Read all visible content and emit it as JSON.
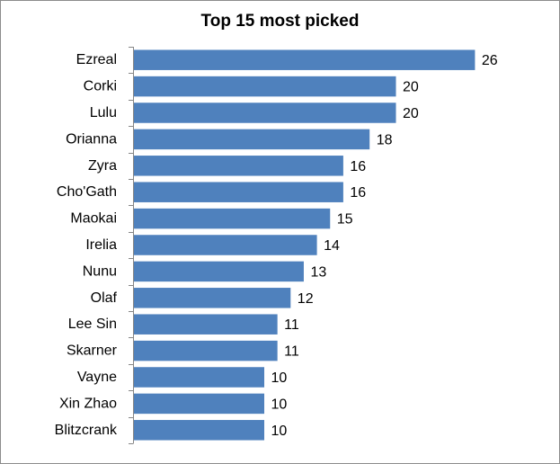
{
  "chart_data": {
    "type": "bar",
    "orientation": "horizontal",
    "title": "Top 15 most picked",
    "categories": [
      "Ezreal",
      "Corki",
      "Lulu",
      "Orianna",
      "Zyra",
      "Cho'Gath",
      "Maokai",
      "Irelia",
      "Nunu",
      "Olaf",
      "Lee Sin",
      "Skarner",
      "Vayne",
      "Xin Zhao",
      "Blitzcrank"
    ],
    "values": [
      26,
      20,
      20,
      18,
      16,
      16,
      15,
      14,
      13,
      12,
      11,
      11,
      10,
      10,
      10
    ],
    "value_labels": [
      "26",
      "20",
      "20",
      "18",
      "16",
      "16",
      "15",
      "14",
      "13",
      "12",
      "11",
      "11",
      "10",
      "10",
      "10"
    ],
    "xlim": [
      0,
      28
    ],
    "grid": false,
    "legend": "none",
    "bar_color": "#4f81bd",
    "bar_edge_color": "#ffffff"
  }
}
